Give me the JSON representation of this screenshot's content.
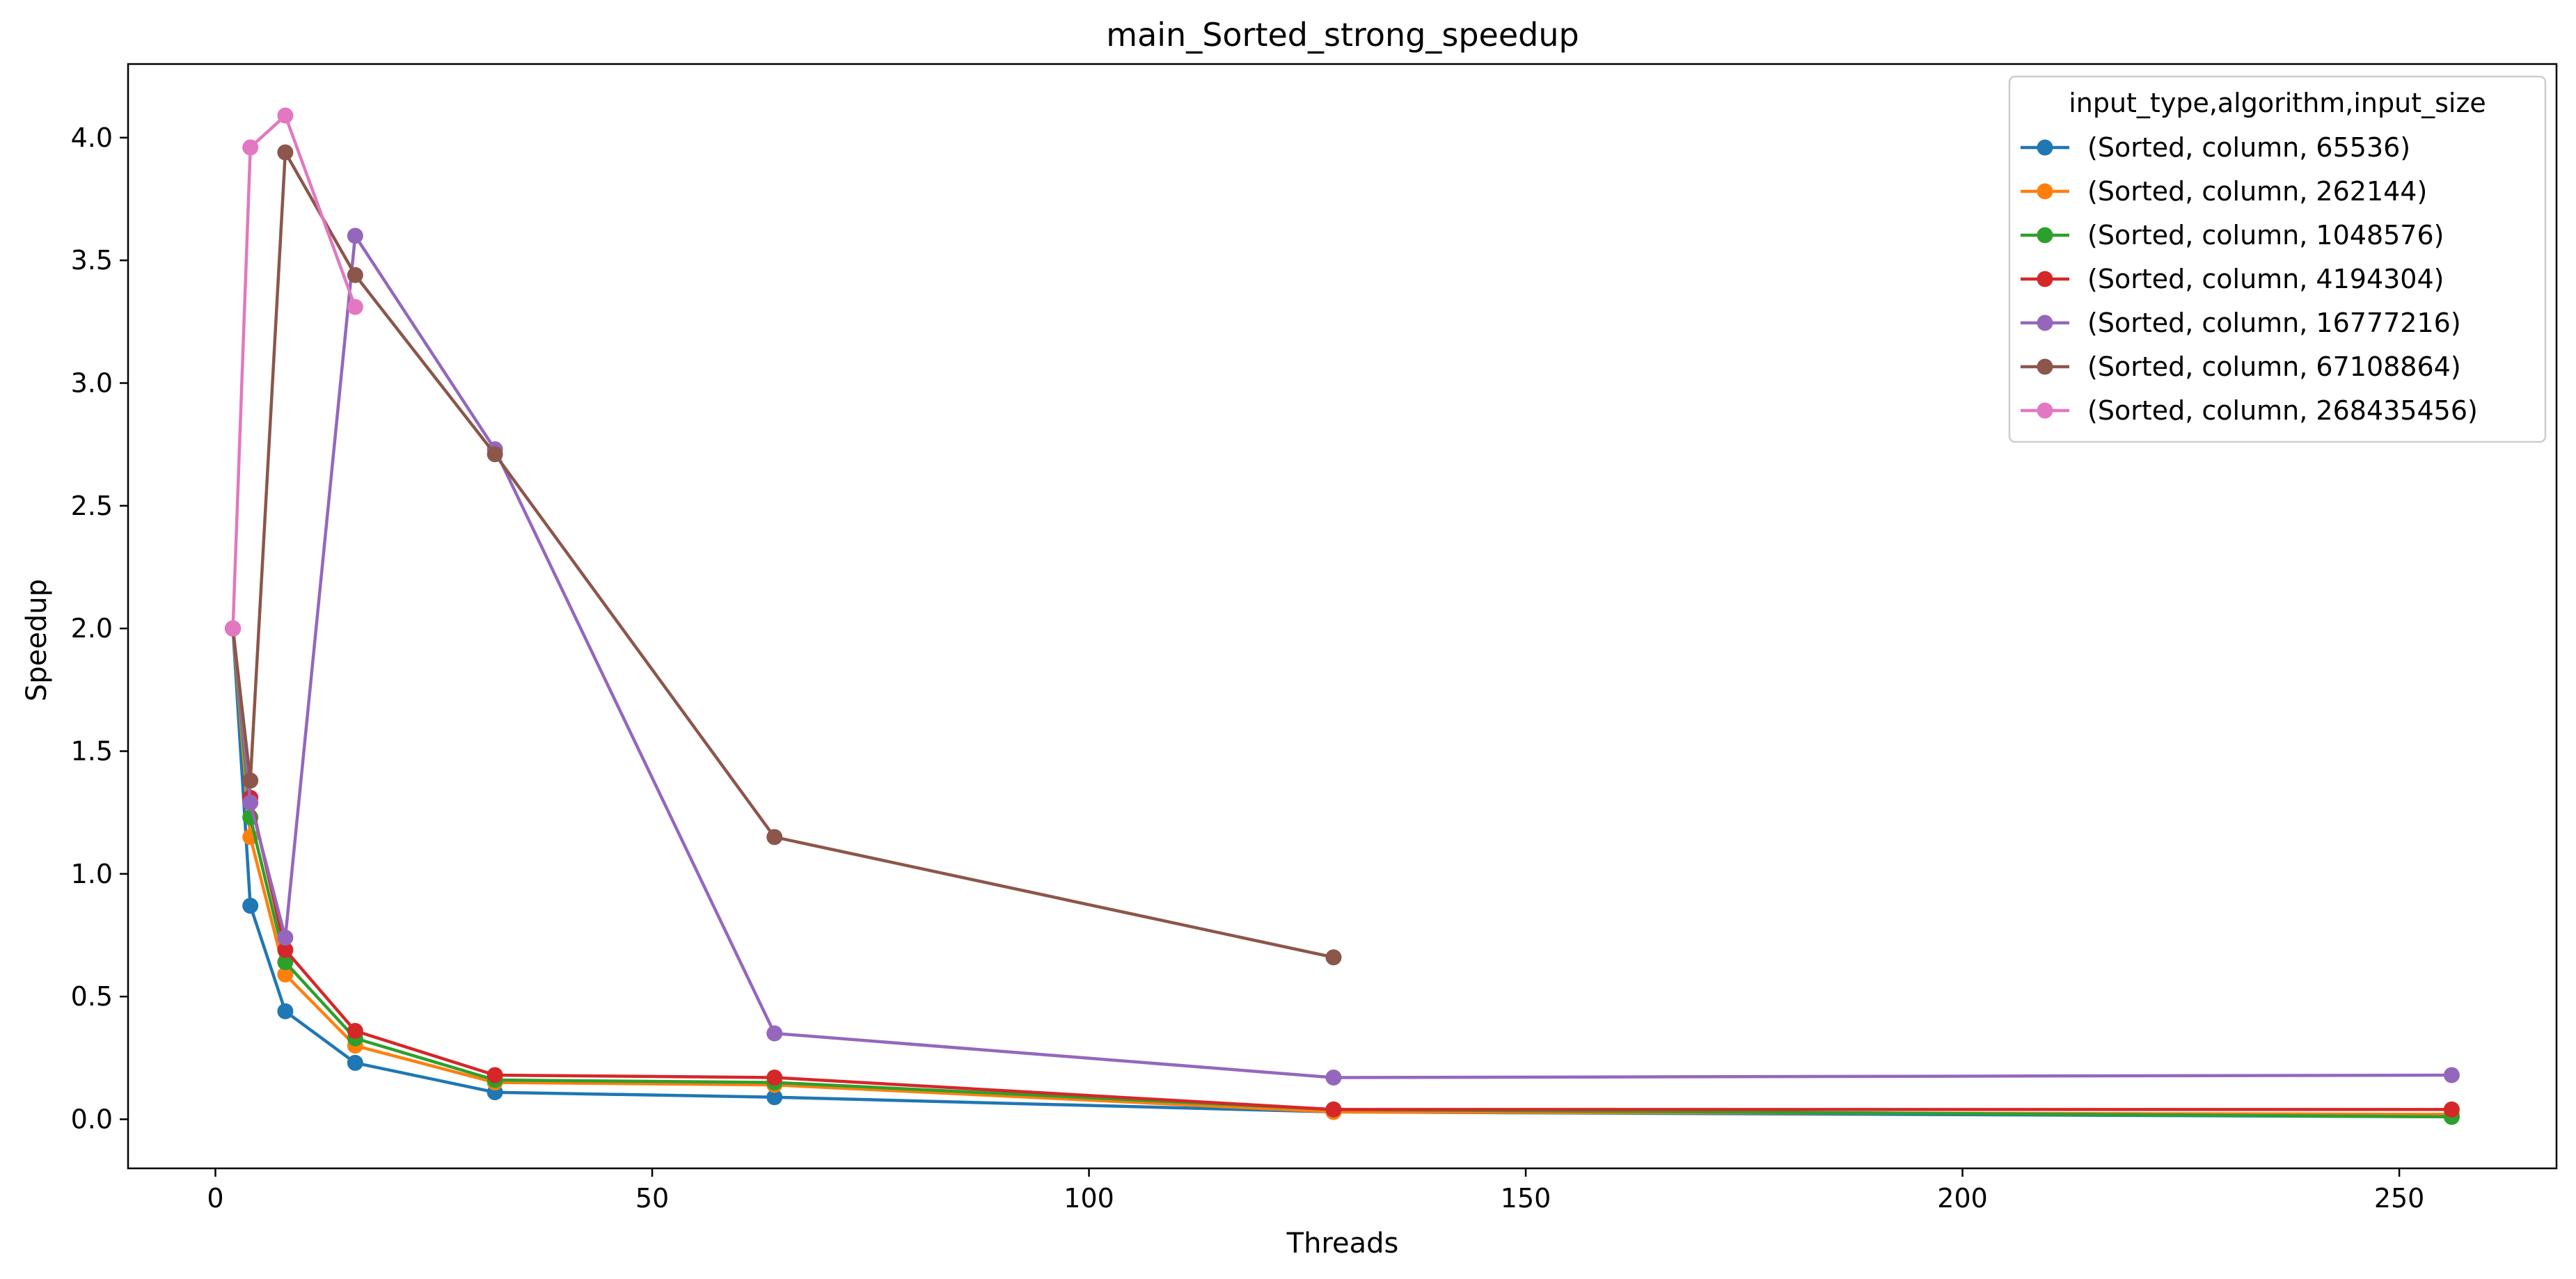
{
  "chart_data": {
    "type": "line",
    "title": "main_Sorted_strong_speedup",
    "xlabel": "Threads",
    "ylabel": "Speedup",
    "xlim": [
      -10,
      268
    ],
    "ylim": [
      -0.2,
      4.3
    ],
    "xticks": [
      0,
      50,
      100,
      150,
      200,
      250
    ],
    "yticks": [
      0.0,
      0.5,
      1.0,
      1.5,
      2.0,
      2.5,
      3.0,
      3.5,
      4.0
    ],
    "grid": false,
    "legend_title": "input_type,algorithm,input_size",
    "legend_position": "top-right",
    "series": [
      {
        "name": "(Sorted, column, 65536)",
        "color": "#1f77b4",
        "x": [
          2,
          4,
          8,
          16,
          32,
          64,
          128,
          256
        ],
        "y": [
          2.0,
          0.87,
          0.44,
          0.23,
          0.11,
          0.09,
          0.03,
          0.01
        ]
      },
      {
        "name": "(Sorted, column, 262144)",
        "color": "#ff7f0e",
        "x": [
          2,
          4,
          8,
          16,
          32,
          64,
          128,
          256
        ],
        "y": [
          2.0,
          1.15,
          0.59,
          0.3,
          0.15,
          0.14,
          0.03,
          0.02
        ]
      },
      {
        "name": "(Sorted, column, 1048576)",
        "color": "#2ca02c",
        "x": [
          2,
          4,
          8,
          16,
          32,
          64,
          128,
          256
        ],
        "y": [
          2.0,
          1.23,
          0.64,
          0.33,
          0.16,
          0.15,
          0.04,
          0.01
        ]
      },
      {
        "name": "(Sorted, column, 4194304)",
        "color": "#d62728",
        "x": [
          2,
          4,
          8,
          16,
          32,
          64,
          128,
          256
        ],
        "y": [
          2.0,
          1.31,
          0.69,
          0.36,
          0.18,
          0.17,
          0.04,
          0.04
        ]
      },
      {
        "name": "(Sorted, column, 16777216)",
        "color": "#9467bd",
        "x": [
          2,
          4,
          8,
          16,
          32,
          64,
          128,
          256
        ],
        "y": [
          2.0,
          1.29,
          0.74,
          3.6,
          2.73,
          0.35,
          0.17,
          0.18
        ]
      },
      {
        "name": "(Sorted, column, 67108864)",
        "color": "#8c564b",
        "x": [
          2,
          4,
          8,
          16,
          32,
          64,
          128
        ],
        "y": [
          2.0,
          1.38,
          3.94,
          3.44,
          2.71,
          1.15,
          0.66
        ]
      },
      {
        "name": "(Sorted, column, 268435456)",
        "color": "#e377c2",
        "x": [
          2,
          4,
          8,
          16
        ],
        "y": [
          2.0,
          3.96,
          4.09,
          3.31
        ]
      }
    ]
  }
}
